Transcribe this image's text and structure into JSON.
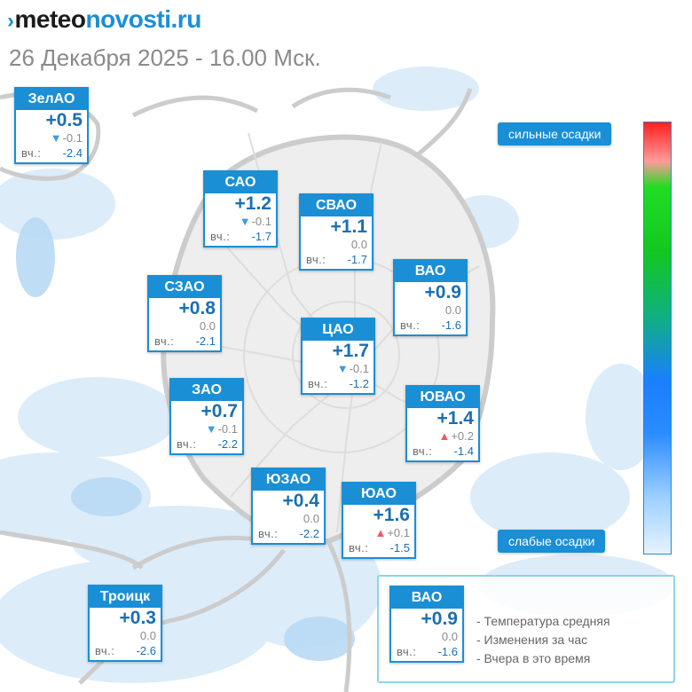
{
  "header": {
    "brand_mark": "›",
    "brand_part1": "meteo",
    "brand_part2": "novosti.ru",
    "datetime": "26 Декабря 2025 - 16.00 Мск."
  },
  "scale": {
    "top_label": "сильные осадки",
    "bottom_label": "слабые осадки"
  },
  "districts": [
    {
      "name": "ЗелАО",
      "temp": "+0.5",
      "change": "-0.1",
      "trend": "down",
      "yest_label": "вч.:",
      "yest": "-2.4"
    },
    {
      "name": "САО",
      "temp": "+1.2",
      "change": "-0.1",
      "trend": "down",
      "yest_label": "вч.:",
      "yest": "-1.7"
    },
    {
      "name": "СВАО",
      "temp": "+1.1",
      "change": "0.0",
      "trend": "none",
      "yest_label": "вч.:",
      "yest": "-1.7"
    },
    {
      "name": "ВАО",
      "temp": "+0.9",
      "change": "0.0",
      "trend": "none",
      "yest_label": "вч.:",
      "yest": "-1.6"
    },
    {
      "name": "СЗАО",
      "temp": "+0.8",
      "change": "0.0",
      "trend": "none",
      "yest_label": "вч.:",
      "yest": "-2.1"
    },
    {
      "name": "ЦАО",
      "temp": "+1.7",
      "change": "-0.1",
      "trend": "down",
      "yest_label": "вч.:",
      "yest": "-1.2"
    },
    {
      "name": "ЗАО",
      "temp": "+0.7",
      "change": "-0.1",
      "trend": "down",
      "yest_label": "вч.:",
      "yest": "-2.2"
    },
    {
      "name": "ЮВАО",
      "temp": "+1.4",
      "change": "+0.2",
      "trend": "up",
      "yest_label": "вч.:",
      "yest": "-1.4"
    },
    {
      "name": "ЮЗАО",
      "temp": "+0.4",
      "change": "0.0",
      "trend": "none",
      "yest_label": "вч.:",
      "yest": "-2.2"
    },
    {
      "name": "ЮАО",
      "temp": "+1.6",
      "change": "+0.1",
      "trend": "up",
      "yest_label": "вч.:",
      "yest": "-1.5"
    },
    {
      "name": "Троицк",
      "temp": "+0.3",
      "change": "0.0",
      "trend": "none",
      "yest_label": "вч.:",
      "yest": "-2.6"
    }
  ],
  "legend": {
    "example": {
      "name": "ВАО",
      "temp": "+0.9",
      "change": "0.0",
      "yest_label": "вч.:",
      "yest": "-1.6"
    },
    "items": [
      "- Температура средняя",
      "- Изменения за час",
      "- Вчера в это время"
    ]
  },
  "colors": {
    "accent": "#1a8fd6",
    "trend_down": "#3d9be3",
    "trend_up": "#ee5b66",
    "precip_light": "#cfe6f8"
  }
}
